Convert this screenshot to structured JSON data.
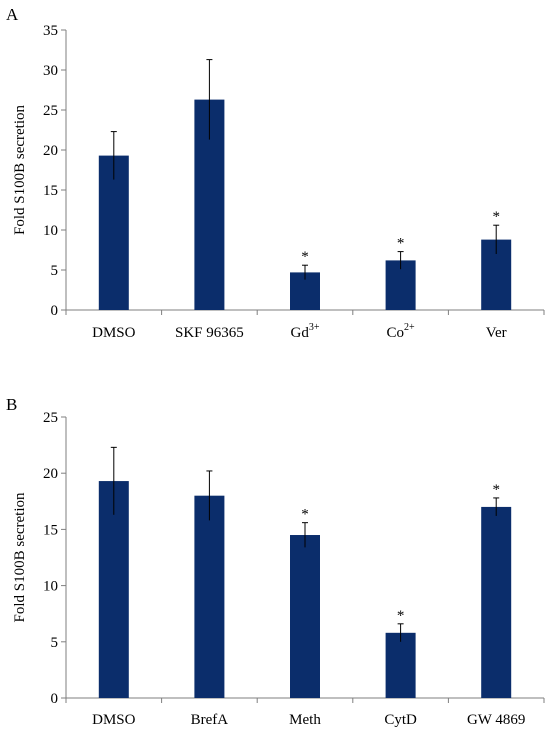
{
  "bar_color": "#0b2d6b",
  "chart_data": [
    {
      "panel": "A",
      "type": "bar",
      "ylabel": "Fold S100B secretion",
      "ylim": [
        0,
        35
      ],
      "yticks": [
        0,
        5,
        10,
        15,
        20,
        25,
        30,
        35
      ],
      "categories": [
        {
          "text": "DMSO",
          "sup": ""
        },
        {
          "text": "SKF 96365",
          "sup": ""
        },
        {
          "text": "Gd",
          "sup": "3+"
        },
        {
          "text": "Co",
          "sup": "2+"
        },
        {
          "text": "Ver",
          "sup": ""
        }
      ],
      "values": [
        19.3,
        26.3,
        4.7,
        6.2,
        8.8
      ],
      "errors": [
        3.0,
        5.0,
        0.9,
        1.1,
        1.8
      ],
      "significant": [
        false,
        false,
        true,
        true,
        true
      ],
      "significance_marker": "*"
    },
    {
      "panel": "B",
      "type": "bar",
      "ylabel": "Fold S100B secretion",
      "ylim": [
        0,
        25
      ],
      "yticks": [
        0,
        5,
        10,
        15,
        20,
        25
      ],
      "categories": [
        {
          "text": "DMSO",
          "sup": ""
        },
        {
          "text": "BrefA",
          "sup": ""
        },
        {
          "text": "Meth",
          "sup": ""
        },
        {
          "text": "CytD",
          "sup": ""
        },
        {
          "text": "GW 4869",
          "sup": ""
        }
      ],
      "values": [
        19.3,
        18.0,
        14.5,
        5.8,
        17.0
      ],
      "errors": [
        3.0,
        2.2,
        1.1,
        0.8,
        0.8
      ],
      "significant": [
        false,
        false,
        true,
        true,
        true
      ],
      "significance_marker": "*"
    }
  ]
}
